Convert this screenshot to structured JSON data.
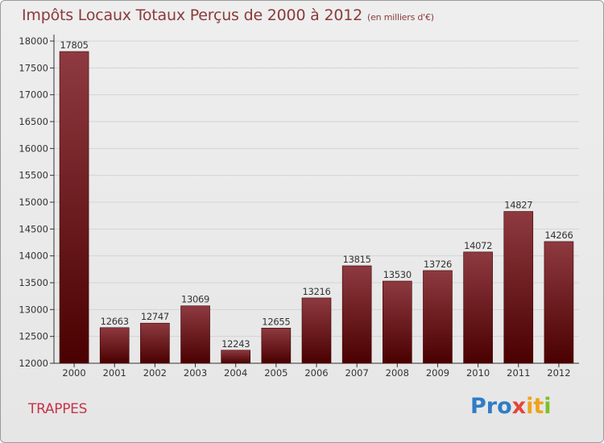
{
  "title": "Impôts Locaux Totaux Perçus de 2000 à 2012",
  "unit_note": "(en milliers d'€)",
  "city": "TRAPPES",
  "logo": {
    "text": "Proxiti",
    "parts": [
      "Pro",
      "x",
      "it",
      "i"
    ]
  },
  "colors": {
    "bar_top": "#8e3a40",
    "bar_bottom": "#4a0000",
    "title": "#8b3a3a",
    "city": "#c8324a",
    "grid": "#d4d4d4"
  },
  "chart_data": {
    "type": "bar",
    "title": "Impôts Locaux Totaux Perçus de 2000 à 2012",
    "xlabel": "",
    "ylabel": "",
    "ylim": [
      12000,
      18000
    ],
    "yticks": [
      12000,
      12500,
      13000,
      13500,
      14000,
      14500,
      15000,
      15500,
      16000,
      16500,
      17000,
      17500,
      18000
    ],
    "categories": [
      "2000",
      "2001",
      "2002",
      "2003",
      "2004",
      "2005",
      "2006",
      "2007",
      "2008",
      "2009",
      "2010",
      "2011",
      "2012"
    ],
    "values": [
      17805,
      12663,
      12747,
      13069,
      12243,
      12655,
      13216,
      13815,
      13530,
      13726,
      14072,
      14827,
      14266
    ],
    "grid": true
  }
}
